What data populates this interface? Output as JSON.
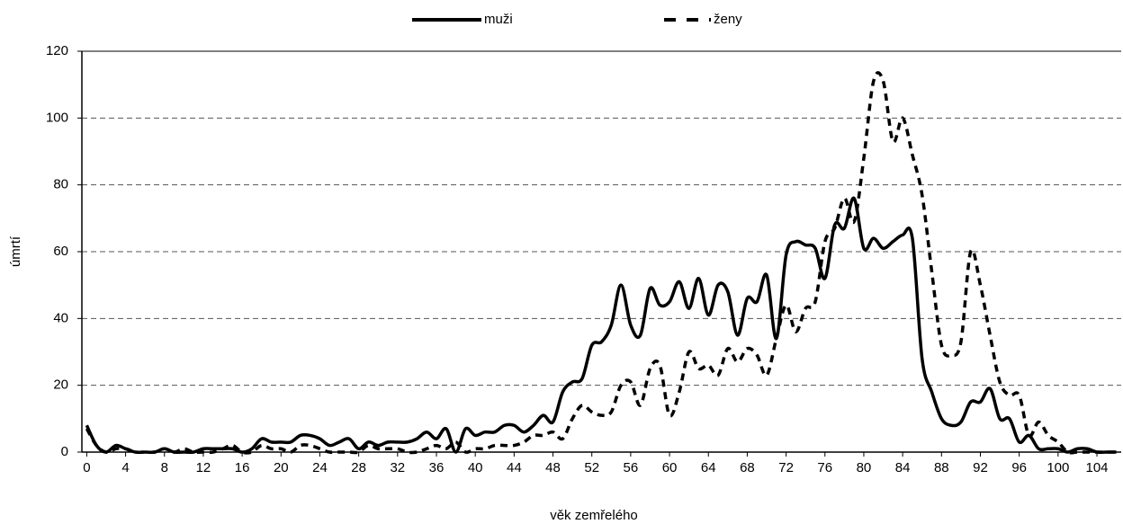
{
  "chart_data": {
    "type": "line",
    "xlabel": "věk zemřelého",
    "ylabel": "úmrtí",
    "x": [
      0,
      1,
      2,
      3,
      4,
      5,
      6,
      7,
      8,
      9,
      10,
      11,
      12,
      13,
      14,
      15,
      16,
      17,
      18,
      19,
      20,
      21,
      22,
      23,
      24,
      25,
      26,
      27,
      28,
      29,
      30,
      31,
      32,
      33,
      34,
      35,
      36,
      37,
      38,
      39,
      40,
      41,
      42,
      43,
      44,
      45,
      46,
      47,
      48,
      49,
      50,
      51,
      52,
      53,
      54,
      55,
      56,
      57,
      58,
      59,
      60,
      61,
      62,
      63,
      64,
      65,
      66,
      67,
      68,
      69,
      70,
      71,
      72,
      73,
      74,
      75,
      76,
      77,
      78,
      79,
      80,
      81,
      82,
      83,
      84,
      85,
      86,
      87,
      88,
      89,
      90,
      91,
      92,
      93,
      94,
      95,
      96,
      97,
      98,
      99,
      100,
      101,
      102,
      103,
      104,
      105,
      106
    ],
    "series": [
      {
        "name": "muži",
        "color": "#000000",
        "dash": "solid",
        "values": [
          8,
          2,
          0,
          2,
          1,
          0,
          0,
          0,
          1,
          0,
          0,
          0,
          1,
          1,
          1,
          1,
          0,
          1,
          4,
          3,
          3,
          3,
          5,
          5,
          4,
          2,
          3,
          4,
          1,
          3,
          2,
          3,
          3,
          3,
          4,
          6,
          4,
          7,
          0,
          7,
          5,
          6,
          6,
          8,
          8,
          6,
          8,
          11,
          9,
          18,
          21,
          22,
          32,
          33,
          38,
          50,
          38,
          35,
          49,
          44,
          45,
          51,
          43,
          52,
          41,
          50,
          48,
          35,
          46,
          45,
          53,
          34,
          59,
          63,
          62,
          61,
          52,
          68,
          67,
          76,
          61,
          64,
          61,
          63,
          65,
          64,
          28,
          18,
          10,
          8,
          9,
          15,
          15,
          19,
          10,
          10,
          3,
          5,
          1,
          1,
          1,
          0,
          1,
          1,
          0,
          0,
          0
        ]
      },
      {
        "name": "ženy",
        "color": "#000000",
        "dash": "dashed",
        "values": [
          7,
          2,
          0,
          1,
          1,
          0,
          0,
          0,
          1,
          0,
          1,
          0,
          0,
          0,
          1,
          2,
          0,
          0,
          2,
          1,
          1,
          0,
          2,
          2,
          1,
          0,
          0,
          0,
          0,
          2,
          1,
          1,
          1,
          0,
          0,
          1,
          2,
          1,
          3,
          0,
          1,
          1,
          2,
          2,
          2,
          3,
          5,
          5,
          6,
          4,
          10,
          14,
          12,
          11,
          12,
          20,
          21,
          14,
          25,
          26,
          11,
          18,
          30,
          25,
          26,
          23,
          31,
          27,
          31,
          29,
          23,
          34,
          44,
          36,
          43,
          45,
          63,
          67,
          76,
          69,
          88,
          111,
          111,
          93,
          100,
          89,
          77,
          54,
          32,
          29,
          33,
          60,
          50,
          35,
          21,
          17,
          17,
          5,
          9,
          5,
          3,
          0,
          0,
          0,
          0,
          0,
          0
        ]
      }
    ],
    "xlim": [
      -0.5,
      106.5
    ],
    "xticks": [
      0,
      4,
      8,
      12,
      16,
      20,
      24,
      28,
      32,
      36,
      40,
      44,
      48,
      52,
      56,
      60,
      64,
      68,
      72,
      76,
      80,
      84,
      88,
      92,
      96,
      100,
      104
    ],
    "ylim": [
      0,
      120
    ],
    "yticks": [
      0,
      20,
      40,
      60,
      80,
      100,
      120
    ],
    "grid": true,
    "legend": "top"
  }
}
